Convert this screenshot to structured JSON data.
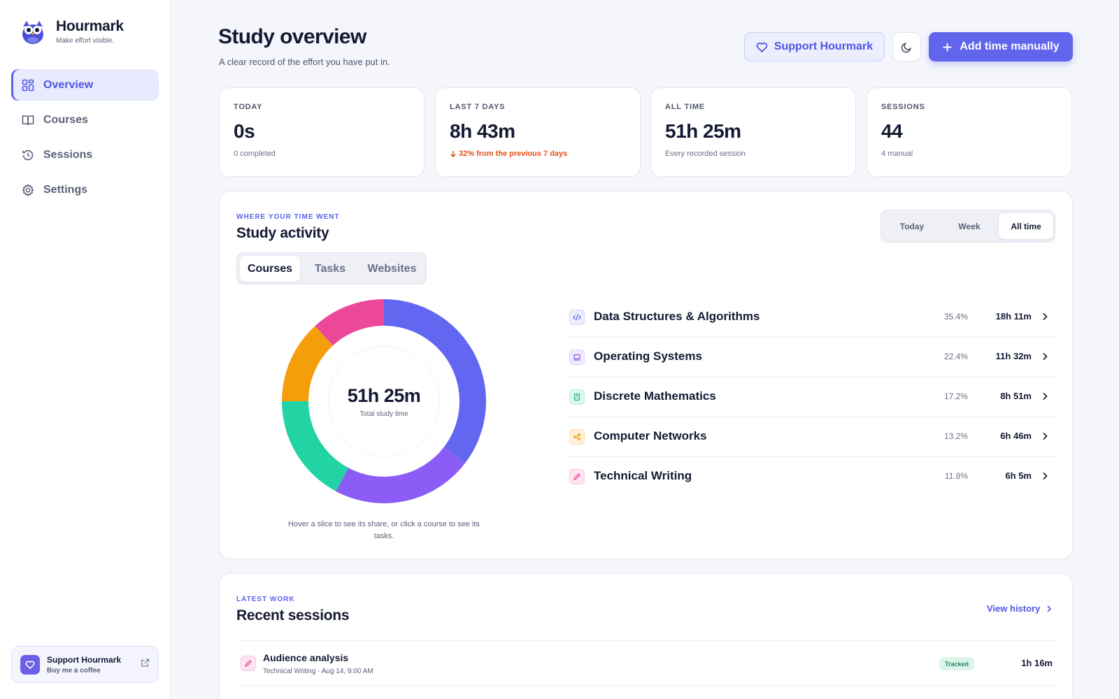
{
  "app": {
    "name": "Hourmark",
    "tagline": "Make effort visible."
  },
  "sidebar": {
    "items": [
      {
        "label": "Overview",
        "icon": "grid-icon",
        "active": true
      },
      {
        "label": "Courses",
        "icon": "book-icon",
        "active": false
      },
      {
        "label": "Sessions",
        "icon": "history-icon",
        "active": false
      },
      {
        "label": "Settings",
        "icon": "gear-icon",
        "active": false
      }
    ],
    "support": {
      "title": "Support Hourmark",
      "subtitle": "Buy me a coffee",
      "icon": "heart-icon",
      "action_icon": "external-link-icon"
    }
  },
  "header": {
    "title": "Study overview",
    "subtitle": "A clear record of the effort you have put in.",
    "support_label": "Support Hourmark",
    "theme_icon": "moon-icon",
    "add_label": "Add time manually"
  },
  "stats": [
    {
      "label": "TODAY",
      "value": "0s",
      "note": "0 completed",
      "trend": "none"
    },
    {
      "label": "LAST 7 DAYS",
      "value": "8h 43m",
      "note": "32% from the previous 7 days",
      "trend": "down"
    },
    {
      "label": "ALL TIME",
      "value": "51h 25m",
      "note": "Every recorded session",
      "trend": "none"
    },
    {
      "label": "SESSIONS",
      "value": "44",
      "note": "4 manual",
      "trend": "none"
    }
  ],
  "activity": {
    "eyebrow": "WHERE YOUR TIME WENT",
    "title": "Study activity",
    "ranges": [
      {
        "label": "Today",
        "active": false
      },
      {
        "label": "Week",
        "active": false
      },
      {
        "label": "All time",
        "active": true
      }
    ],
    "tabs": [
      {
        "label": "Courses",
        "active": true
      },
      {
        "label": "Tasks",
        "active": false
      },
      {
        "label": "Websites",
        "active": false
      }
    ],
    "total": "51h 25m",
    "total_caption": "Total study time",
    "hint": "Hover a slice to see its share, or click a course to see its tasks.",
    "courses": [
      {
        "name": "Data Structures & Algorithms",
        "pct": "35.4%",
        "time": "18h 11m",
        "icon": "code-icon",
        "color": "#6366f1",
        "tint": "#ecedfd"
      },
      {
        "name": "Operating Systems",
        "pct": "22.4%",
        "time": "11h 32m",
        "icon": "laptop-icon",
        "color": "#8b5cf6",
        "tint": "#f1ebfe"
      },
      {
        "name": "Discrete Mathematics",
        "pct": "17.2%",
        "time": "8h 51m",
        "icon": "calculator-icon",
        "color": "#22d3a4",
        "tint": "#dcf8ef"
      },
      {
        "name": "Computer Networks",
        "pct": "13.2%",
        "time": "6h 46m",
        "icon": "network-icon",
        "color": "#f59e0b",
        "tint": "#fef2dc"
      },
      {
        "name": "Technical Writing",
        "pct": "11.8%",
        "time": "6h 5m",
        "icon": "pen-icon",
        "color": "#ec4899",
        "tint": "#fde6f2"
      }
    ]
  },
  "chart_data": {
    "type": "pie",
    "categories": [
      "Data Structures & Algorithms",
      "Operating Systems",
      "Discrete Mathematics",
      "Computer Networks",
      "Technical Writing"
    ],
    "values": [
      35.4,
      22.4,
      17.2,
      13.2,
      11.8
    ],
    "colors": [
      "#6366f1",
      "#8b5cf6",
      "#22d3a4",
      "#f59e0b",
      "#ec4899"
    ]
  },
  "recent": {
    "eyebrow": "LATEST WORK",
    "title": "Recent sessions",
    "view_history": "View history",
    "sessions": [
      {
        "title": "Audience analysis",
        "meta": "Technical Writing · Aug 14, 9:00 AM",
        "badge": "Tracked",
        "duration": "1h 16m",
        "icon": "pen-icon",
        "color": "#ec4899",
        "tint": "#fde6f2"
      }
    ]
  }
}
